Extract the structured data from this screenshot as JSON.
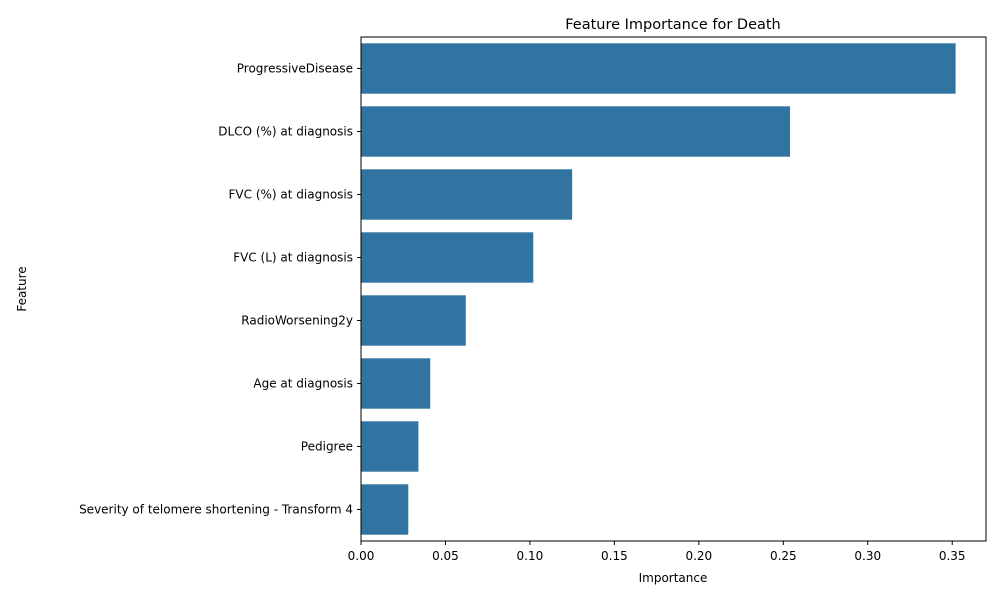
{
  "chart_data": {
    "type": "bar",
    "orientation": "horizontal",
    "title": "Feature Importance for Death",
    "xlabel": "Importance",
    "ylabel": "Feature",
    "categories": [
      "ProgressiveDisease",
      "DLCO (%) at diagnosis",
      "FVC (%) at diagnosis",
      "FVC (L) at diagnosis",
      "RadioWorsening2y",
      "Age at diagnosis",
      "Pedigree",
      "Severity of telomere shortening - Transform 4"
    ],
    "values": [
      0.352,
      0.254,
      0.125,
      0.102,
      0.062,
      0.041,
      0.034,
      0.028
    ],
    "xlim": [
      0,
      0.37
    ],
    "xticks": [
      0.0,
      0.05,
      0.1,
      0.15,
      0.2,
      0.25,
      0.3,
      0.35
    ],
    "xtick_labels": [
      "0.00",
      "0.05",
      "0.10",
      "0.15",
      "0.20",
      "0.25",
      "0.30",
      "0.35"
    ],
    "grid": false,
    "bar_color": "#3274a1"
  }
}
